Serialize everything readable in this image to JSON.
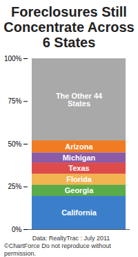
{
  "chart_data": {
    "type": "bar",
    "title": "Foreclosures Still Concentrate Across 6 States",
    "stacked": true,
    "categories": [
      null
    ],
    "series": [
      {
        "name": "California",
        "color": "#3b7fcb",
        "values": [
          19.5
        ]
      },
      {
        "name": "Georgia",
        "color": "#5aab4a",
        "values": [
          6.5
        ]
      },
      {
        "name": "Florida",
        "color": "#f2b451",
        "values": [
          6.5
        ]
      },
      {
        "name": "Texas",
        "color": "#de4b4b",
        "values": [
          6.5
        ]
      },
      {
        "name": "Michigan",
        "color": "#8c5ba6",
        "values": [
          6
        ]
      },
      {
        "name": "Arizona",
        "color": "#f17b22",
        "values": [
          7
        ]
      },
      {
        "name": "The Other 44 States",
        "color": "#a9a9a9",
        "values": [
          48
        ]
      }
    ],
    "ylim": [
      0,
      100
    ],
    "yticks": [
      {
        "value": 0,
        "label": "0%"
      },
      {
        "value": 25,
        "label": "25%"
      },
      {
        "value": 50,
        "label": "50%"
      },
      {
        "value": 75,
        "label": "75%"
      },
      {
        "value": 100,
        "label": "100%"
      }
    ],
    "grid": false,
    "annotations": [
      "Data: RealtyTrac : July 2011",
      "©ChartForce  Do not reproduce without permission."
    ]
  }
}
